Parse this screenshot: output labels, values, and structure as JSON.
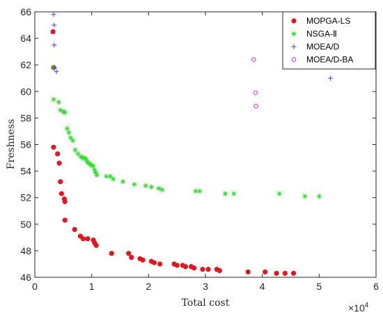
{
  "chart_data": {
    "type": "scatter",
    "xlabel": "Total cost",
    "ylabel": "Freshness",
    "xlim": [
      0,
      60000
    ],
    "ylim": [
      46,
      66
    ],
    "x_tick_labels": [
      "0",
      "1",
      "2",
      "3",
      "4",
      "5",
      "6"
    ],
    "y_tick_labels": [
      "46",
      "48",
      "50",
      "52",
      "54",
      "56",
      "58",
      "60",
      "62",
      "64",
      "66"
    ],
    "x_multiplier_base": "×10",
    "x_multiplier_exponent": "4",
    "grid": false,
    "legend_position": "top-right",
    "series": [
      {
        "name": "MOPGA-LS",
        "marker": "filled-circle",
        "color": "#e8141b",
        "points": [
          [
            3200,
            64.5
          ],
          [
            3300,
            61.8
          ],
          [
            3300,
            55.8
          ],
          [
            4000,
            55.3
          ],
          [
            4300,
            54.6
          ],
          [
            4500,
            53.2
          ],
          [
            4700,
            52.3
          ],
          [
            5200,
            51.9
          ],
          [
            5300,
            51.7
          ],
          [
            5300,
            50.3
          ],
          [
            7000,
            49.6
          ],
          [
            8000,
            49.1
          ],
          [
            8500,
            48.9
          ],
          [
            9300,
            48.9
          ],
          [
            10300,
            48.8
          ],
          [
            10500,
            48.6
          ],
          [
            10800,
            48.4
          ],
          [
            13500,
            47.8
          ],
          [
            16500,
            47.8
          ],
          [
            17000,
            47.5
          ],
          [
            18500,
            47.4
          ],
          [
            19000,
            47.3
          ],
          [
            20500,
            47.2
          ],
          [
            21000,
            47.1
          ],
          [
            22000,
            47.0
          ],
          [
            24500,
            47.0
          ],
          [
            25000,
            46.9
          ],
          [
            26000,
            46.9
          ],
          [
            26500,
            46.8
          ],
          [
            27500,
            46.8
          ],
          [
            28000,
            46.7
          ],
          [
            29500,
            46.6
          ],
          [
            30500,
            46.6
          ],
          [
            32000,
            46.6
          ],
          [
            32500,
            46.5
          ],
          [
            37500,
            46.4
          ],
          [
            40500,
            46.4
          ],
          [
            42500,
            46.3
          ],
          [
            44000,
            46.3
          ],
          [
            45500,
            46.3
          ]
        ]
      },
      {
        "name": "NSGA-Ⅱ",
        "marker": "asterisk",
        "color": "#22e21e",
        "points": [
          [
            3300,
            61.8
          ],
          [
            3300,
            59.4
          ],
          [
            4200,
            59.2
          ],
          [
            4500,
            58.6
          ],
          [
            5000,
            58.5
          ],
          [
            5300,
            58.4
          ],
          [
            5700,
            57.2
          ],
          [
            6000,
            56.9
          ],
          [
            6300,
            56.5
          ],
          [
            6700,
            56.3
          ],
          [
            7100,
            55.6
          ],
          [
            7600,
            55.3
          ],
          [
            8100,
            55.1
          ],
          [
            8400,
            55.0
          ],
          [
            8700,
            55.0
          ],
          [
            9000,
            54.9
          ],
          [
            9200,
            54.7
          ],
          [
            9500,
            54.6
          ],
          [
            9800,
            54.5
          ],
          [
            10000,
            54.4
          ],
          [
            10300,
            54.4
          ],
          [
            10500,
            54.1
          ],
          [
            10700,
            53.9
          ],
          [
            10900,
            53.7
          ],
          [
            12600,
            53.6
          ],
          [
            13300,
            53.6
          ],
          [
            13800,
            53.4
          ],
          [
            15500,
            53.2
          ],
          [
            17500,
            53.0
          ],
          [
            19500,
            52.9
          ],
          [
            20500,
            52.8
          ],
          [
            21800,
            52.7
          ],
          [
            22400,
            52.6
          ],
          [
            28300,
            52.5
          ],
          [
            29000,
            52.5
          ],
          [
            33500,
            52.3
          ],
          [
            35000,
            52.3
          ],
          [
            43000,
            52.3
          ],
          [
            47500,
            52.1
          ],
          [
            50000,
            52.1
          ]
        ]
      },
      {
        "name": "MOEA/D",
        "marker": "plus",
        "color": "#3c3ce8",
        "points": [
          [
            3300,
            65.8
          ],
          [
            3400,
            65.0
          ],
          [
            3400,
            63.5
          ],
          [
            3500,
            61.8
          ],
          [
            3800,
            61.5
          ],
          [
            52000,
            61.0
          ]
        ]
      },
      {
        "name": "MOEA/D-BA",
        "marker": "open-circle",
        "color": "#e02ee0",
        "points": [
          [
            38500,
            62.4
          ],
          [
            38800,
            59.9
          ],
          [
            38900,
            58.9
          ]
        ]
      }
    ]
  }
}
